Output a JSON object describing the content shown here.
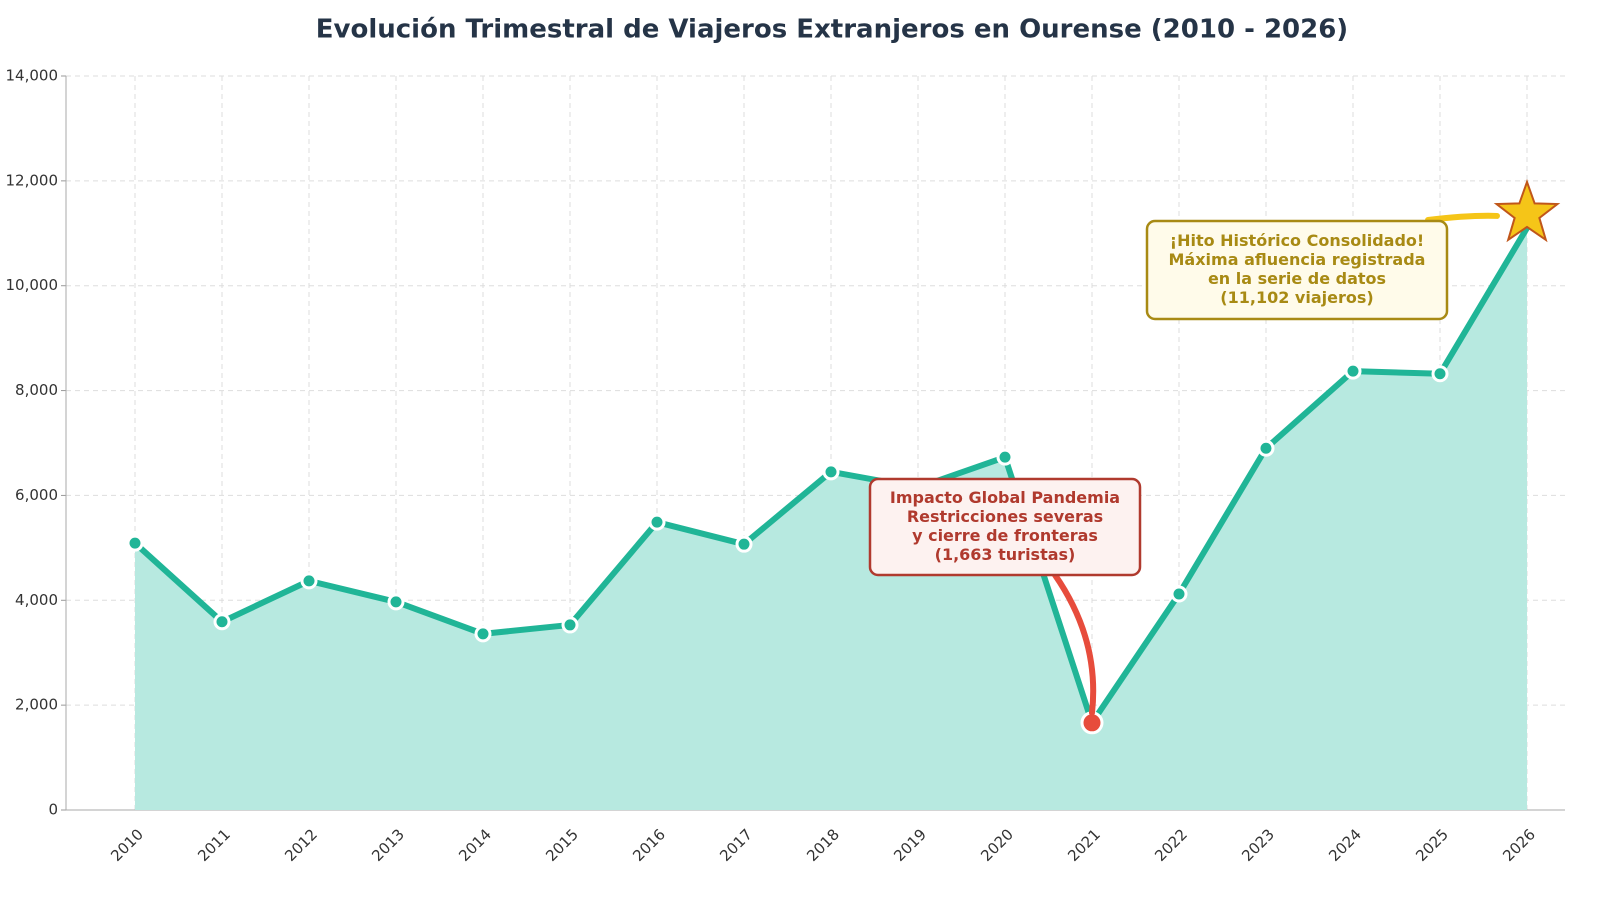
{
  "chart_data": {
    "type": "line",
    "title": "Evolución Trimestral de Viajeros Extranjeros en Ourense (2010 - 2026)",
    "categories": [
      "2010",
      "2011",
      "2012",
      "2013",
      "2014",
      "2015",
      "2016",
      "2017",
      "2018",
      "2019",
      "2020",
      "2021",
      "2022",
      "2023",
      "2024",
      "2025",
      "2026"
    ],
    "values": [
      5090,
      3590,
      4370,
      3970,
      3360,
      3530,
      5490,
      5070,
      6450,
      6150,
      6730,
      1663,
      4120,
      6900,
      8370,
      8320,
      11102
    ],
    "color": "#20b597",
    "area_color": "#b7e9e0",
    "ylim": [
      0,
      14000
    ],
    "yticks": [
      0,
      {
        "value": 2000,
        "label": "2,000"
      },
      {
        "value": 4000,
        "label": "4,000"
      },
      {
        "value": 6000,
        "label": "6,000"
      },
      {
        "value": 8000,
        "label": "8,000"
      },
      {
        "value": 10000,
        "label": "10,000"
      },
      {
        "value": 12000,
        "label": "12,000"
      },
      {
        "value": 14000,
        "label": "14,000"
      }
    ],
    "grid": true,
    "annotations": [
      {
        "lines": [
          "Impacto Global Pandemia",
          "Restricciones severas",
          "y cierre de fronteras",
          "(1,663 turistas)"
        ],
        "color": "#b03a2e",
        "marker_color": "#e74c3c",
        "box_fill": "#fdf2f0"
      },
      {
        "lines": [
          "¡Hito Histórico Consolidado!",
          "Máxima afluencia registrada",
          "en la serie de datos",
          "(11,102 viajeros)"
        ],
        "color": "#a88a14",
        "marker_color": "#f5c518",
        "box_fill": "#fffbea"
      }
    ]
  }
}
